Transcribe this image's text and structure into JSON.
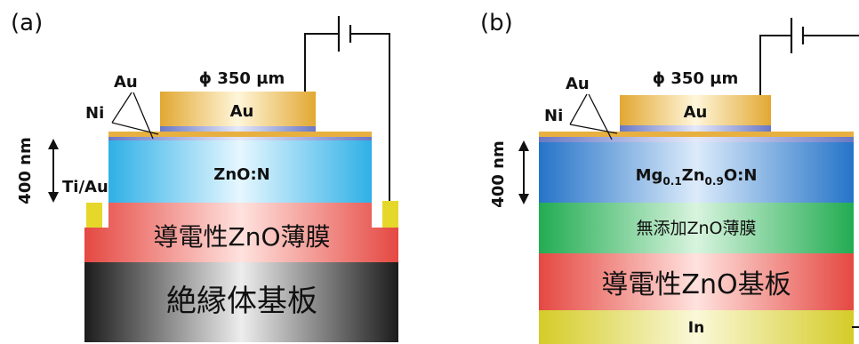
{
  "panel_a": {
    "label": "(a)",
    "diameter": "ϕ 350 µm",
    "au_pad": "Au",
    "au_callout": "Au",
    "ni_callout": "Ni",
    "film": "ZnO:N",
    "thickness": "400 nm",
    "contact": "Ti/Au",
    "conductive_layer": "導電性ZnO薄膜",
    "substrate": "絶縁体基板"
  },
  "panel_b": {
    "label": "(b)",
    "diameter": "ϕ 350 µm",
    "au_pad": "Au",
    "au_callout": "Au",
    "ni_callout": "Ni",
    "film": {
      "mg": "Mg",
      "mg_sub": "0.1",
      "zn": "Zn",
      "zn_sub": "0.9",
      "rest": "O:N"
    },
    "thickness": "400 nm",
    "undoped_layer": "無添加ZnO薄膜",
    "substrate": "導電性ZnO基板",
    "back_contact": "In"
  },
  "colors": {
    "gold": "#E8B040",
    "ni_blue": "#7080C8",
    "cyan": "#3FB8E8",
    "blue": "#2E7FD0",
    "red": "#E8504A",
    "green": "#2EB45A",
    "dark": "#2a2a2a",
    "yellow_pad": "#E6D82A",
    "in_yellow": "#D8D030"
  }
}
